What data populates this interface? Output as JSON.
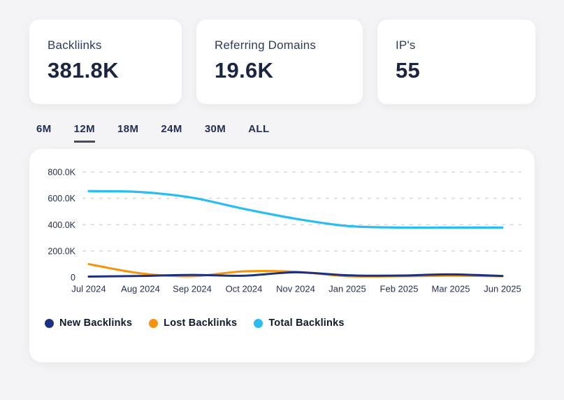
{
  "cards": [
    {
      "label": "Backliinks",
      "value": "381.8K"
    },
    {
      "label": "Referring Domains",
      "value": "19.6K"
    },
    {
      "label": "IP's",
      "value": "55"
    }
  ],
  "tabs": {
    "items": [
      "6M",
      "12M",
      "18M",
      "24M",
      "30M",
      "ALL"
    ],
    "active": "12M"
  },
  "chart_data": {
    "type": "line",
    "categories": [
      "Jul 2024",
      "Aug 2024",
      "Sep 2024",
      "Oct 2024",
      "Nov 2024",
      "Jan 2025",
      "Feb 2025",
      "Mar 2025",
      "Jun 2025"
    ],
    "series": [
      {
        "name": "New Backlinks",
        "color": "#1d3080",
        "values": [
          5000,
          10000,
          18000,
          12000,
          38000,
          15000,
          13000,
          22000,
          10000
        ]
      },
      {
        "name": "Lost Backlinks",
        "color": "#f5930f",
        "values": [
          100000,
          30000,
          8000,
          45000,
          42000,
          8000,
          8000,
          12000,
          8000
        ]
      },
      {
        "name": "Total Backlinks",
        "color": "#2bbcf0",
        "values": [
          655000,
          648000,
          605000,
          520000,
          445000,
          390000,
          378000,
          378000,
          378000
        ]
      }
    ],
    "ylim": [
      0,
      800000
    ],
    "yticks": [
      {
        "value": 0,
        "label": "0"
      },
      {
        "value": 200000,
        "label": "200.0K"
      },
      {
        "value": 400000,
        "label": "400.0K"
      },
      {
        "value": 600000,
        "label": "600.0K"
      },
      {
        "value": 800000,
        "label": "800.0K"
      }
    ],
    "grid": "dashed-horizontal",
    "grid_color": "#d8d8dd",
    "legend_position": "bottom"
  }
}
